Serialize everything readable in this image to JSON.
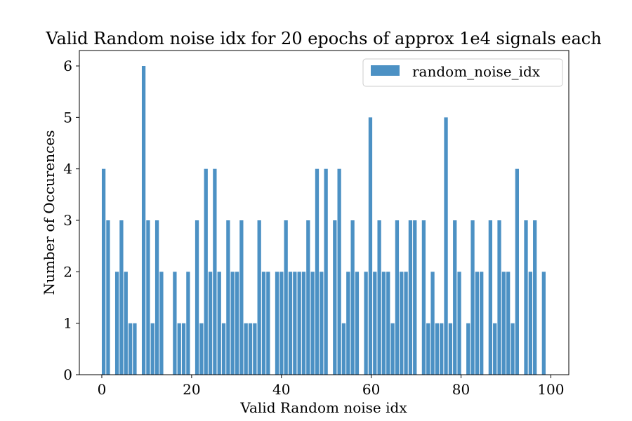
{
  "chart_data": {
    "type": "bar",
    "title": "Valid Random noise idx for 20 epochs of approx 1e4 signals each",
    "xlabel": "Valid Random noise idx",
    "ylabel": "Number of Occurences",
    "xlim": [
      -5,
      104
    ],
    "ylim": [
      0,
      6.3
    ],
    "xticks": [
      0,
      20,
      40,
      60,
      80,
      100
    ],
    "yticks": [
      0,
      1,
      2,
      3,
      4,
      5,
      6
    ],
    "bin_width": 0.825,
    "bar_color": "#4c91c4",
    "legend_position": "top-right",
    "series": [
      {
        "name": "random_noise_idx",
        "bins": [
          {
            "x": 0.0,
            "count": 4
          },
          {
            "x": 0.99,
            "count": 3
          },
          {
            "x": 2.97,
            "count": 2
          },
          {
            "x": 3.96,
            "count": 3
          },
          {
            "x": 4.95,
            "count": 2
          },
          {
            "x": 5.94,
            "count": 1
          },
          {
            "x": 6.93,
            "count": 1
          },
          {
            "x": 8.91,
            "count": 6
          },
          {
            "x": 9.9,
            "count": 3
          },
          {
            "x": 10.89,
            "count": 1
          },
          {
            "x": 11.88,
            "count": 3
          },
          {
            "x": 12.87,
            "count": 2
          },
          {
            "x": 15.84,
            "count": 2
          },
          {
            "x": 16.83,
            "count": 1
          },
          {
            "x": 17.82,
            "count": 1
          },
          {
            "x": 18.81,
            "count": 2
          },
          {
            "x": 20.79,
            "count": 3
          },
          {
            "x": 21.78,
            "count": 1
          },
          {
            "x": 22.77,
            "count": 4
          },
          {
            "x": 23.76,
            "count": 2
          },
          {
            "x": 24.75,
            "count": 4
          },
          {
            "x": 25.74,
            "count": 2
          },
          {
            "x": 26.73,
            "count": 1
          },
          {
            "x": 27.72,
            "count": 3
          },
          {
            "x": 28.71,
            "count": 2
          },
          {
            "x": 29.7,
            "count": 2
          },
          {
            "x": 30.69,
            "count": 3
          },
          {
            "x": 31.68,
            "count": 1
          },
          {
            "x": 32.67,
            "count": 1
          },
          {
            "x": 33.66,
            "count": 1
          },
          {
            "x": 34.65,
            "count": 3
          },
          {
            "x": 35.64,
            "count": 2
          },
          {
            "x": 36.63,
            "count": 2
          },
          {
            "x": 38.61,
            "count": 2
          },
          {
            "x": 39.6,
            "count": 2
          },
          {
            "x": 40.59,
            "count": 3
          },
          {
            "x": 41.58,
            "count": 2
          },
          {
            "x": 42.57,
            "count": 2
          },
          {
            "x": 43.56,
            "count": 2
          },
          {
            "x": 44.55,
            "count": 2
          },
          {
            "x": 45.54,
            "count": 3
          },
          {
            "x": 46.53,
            "count": 2
          },
          {
            "x": 47.52,
            "count": 4
          },
          {
            "x": 48.51,
            "count": 2
          },
          {
            "x": 49.5,
            "count": 4
          },
          {
            "x": 51.48,
            "count": 3
          },
          {
            "x": 52.47,
            "count": 4
          },
          {
            "x": 53.46,
            "count": 1
          },
          {
            "x": 54.45,
            "count": 2
          },
          {
            "x": 55.44,
            "count": 3
          },
          {
            "x": 56.43,
            "count": 2
          },
          {
            "x": 58.41,
            "count": 2
          },
          {
            "x": 59.4,
            "count": 5
          },
          {
            "x": 60.39,
            "count": 2
          },
          {
            "x": 61.38,
            "count": 3
          },
          {
            "x": 62.37,
            "count": 2
          },
          {
            "x": 63.36,
            "count": 2
          },
          {
            "x": 64.35,
            "count": 1
          },
          {
            "x": 65.34,
            "count": 3
          },
          {
            "x": 66.33,
            "count": 2
          },
          {
            "x": 67.32,
            "count": 2
          },
          {
            "x": 68.31,
            "count": 3
          },
          {
            "x": 69.3,
            "count": 3
          },
          {
            "x": 71.28,
            "count": 3
          },
          {
            "x": 72.27,
            "count": 1
          },
          {
            "x": 73.26,
            "count": 2
          },
          {
            "x": 74.25,
            "count": 1
          },
          {
            "x": 75.24,
            "count": 1
          },
          {
            "x": 76.23,
            "count": 5
          },
          {
            "x": 77.22,
            "count": 1
          },
          {
            "x": 78.21,
            "count": 3
          },
          {
            "x": 79.2,
            "count": 2
          },
          {
            "x": 81.18,
            "count": 1
          },
          {
            "x": 82.17,
            "count": 3
          },
          {
            "x": 83.16,
            "count": 2
          },
          {
            "x": 84.15,
            "count": 2
          },
          {
            "x": 86.13,
            "count": 3
          },
          {
            "x": 87.12,
            "count": 1
          },
          {
            "x": 88.11,
            "count": 3
          },
          {
            "x": 89.1,
            "count": 2
          },
          {
            "x": 90.09,
            "count": 2
          },
          {
            "x": 91.08,
            "count": 1
          },
          {
            "x": 92.07,
            "count": 4
          },
          {
            "x": 94.05,
            "count": 3
          },
          {
            "x": 95.04,
            "count": 2
          },
          {
            "x": 96.03,
            "count": 3
          },
          {
            "x": 98.01,
            "count": 2
          }
        ]
      }
    ]
  }
}
